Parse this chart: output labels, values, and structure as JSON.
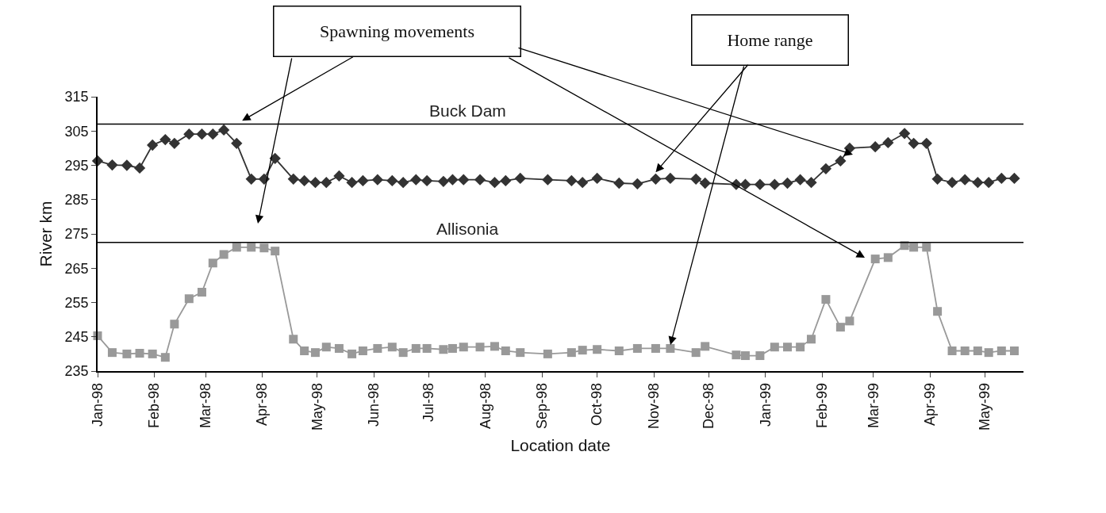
{
  "chart_data": {
    "type": "line",
    "xlabel": "Location date",
    "ylabel": "River km",
    "x": [
      "1998-01-01",
      "1998-01-09",
      "1998-01-17",
      "1998-01-24",
      "1998-01-31",
      "1998-02-07",
      "1998-02-12",
      "1998-02-20",
      "1998-02-27",
      "1998-03-05",
      "1998-03-11",
      "1998-03-18",
      "1998-03-26",
      "1998-04-02",
      "1998-04-08",
      "1998-04-18",
      "1998-04-24",
      "1998-04-30",
      "1998-05-06",
      "1998-05-13",
      "1998-05-20",
      "1998-05-26",
      "1998-06-03",
      "1998-06-11",
      "1998-06-17",
      "1998-06-24",
      "1998-06-30",
      "1998-07-09",
      "1998-07-14",
      "1998-07-20",
      "1998-07-29",
      "1998-08-06",
      "1998-08-12",
      "1998-08-20",
      "1998-09-04",
      "1998-09-17",
      "1998-09-23",
      "1998-10-01",
      "1998-10-13",
      "1998-10-23",
      "1998-11-02",
      "1998-11-10",
      "1998-11-24",
      "1998-11-29",
      "1998-12-16",
      "1998-12-21",
      "1998-12-29",
      "1999-01-06",
      "1999-01-13",
      "1999-01-20",
      "1999-01-26",
      "1999-02-03",
      "1999-02-11",
      "1999-02-16",
      "1999-03-02",
      "1999-03-09",
      "1999-03-18",
      "1999-03-23",
      "1999-03-30",
      "1999-04-05",
      "1999-04-13",
      "1999-04-20",
      "1999-04-27",
      "1999-05-03",
      "1999-05-10",
      "1999-05-17"
    ],
    "series": [
      {
        "color": "#333333",
        "marker": "diamond",
        "values": [
          296.3,
          295.1,
          295,
          294.2,
          300.9,
          302.5,
          301.4,
          304.1,
          304.1,
          304.1,
          305.3,
          301.4,
          291,
          291,
          297,
          291,
          290.5,
          290,
          290,
          291.9,
          290,
          290.5,
          290.8,
          290.5,
          290,
          290.8,
          290.5,
          290.3,
          290.8,
          290.8,
          290.8,
          290,
          290.5,
          291.2,
          290.8,
          290.5,
          290,
          291.2,
          289.8,
          289.6,
          291,
          291.2,
          291,
          289.8,
          289.4,
          289.4,
          289.4,
          289.4,
          289.8,
          290.8,
          290,
          294,
          296.3,
          300,
          300.4,
          301.6,
          304.3,
          301.4,
          301.4,
          291,
          290,
          290.8,
          290,
          290,
          291.2,
          291.2
        ]
      },
      {
        "color": "#999999",
        "marker": "square",
        "values": [
          245.3,
          240.4,
          240,
          240.2,
          240,
          239,
          248.7,
          256.1,
          258,
          266.5,
          269,
          271.1,
          271.1,
          270.9,
          270,
          244.3,
          240.9,
          240.4,
          242,
          241.6,
          240,
          240.9,
          241.6,
          242,
          240.4,
          241.6,
          241.6,
          241.3,
          241.6,
          242,
          242,
          242.2,
          240.9,
          240.4,
          240,
          240.4,
          241.1,
          241.3,
          240.9,
          241.6,
          241.6,
          241.6,
          240.4,
          242.2,
          239.7,
          239.5,
          239.5,
          242,
          242,
          242,
          244.3,
          255.9,
          247.8,
          249.6,
          267.7,
          268.1,
          271.6,
          271.1,
          271.1,
          252.4,
          240.9,
          240.9,
          240.9,
          240.4,
          240.9,
          240.9
        ]
      }
    ],
    "xlim": [
      "1998-01-01",
      "1999-05-22"
    ],
    "xticks": [
      {
        "value": "1998-01-01",
        "label": "Jan-98"
      },
      {
        "value": "1998-02-01",
        "label": "Feb-98"
      },
      {
        "value": "1998-03-01",
        "label": "Mar-98"
      },
      {
        "value": "1998-04-01",
        "label": "Apr-98"
      },
      {
        "value": "1998-05-01",
        "label": "May-98"
      },
      {
        "value": "1998-06-01",
        "label": "Jun-98"
      },
      {
        "value": "1998-07-01",
        "label": "Jul-98"
      },
      {
        "value": "1998-08-01",
        "label": "Aug-98"
      },
      {
        "value": "1998-09-01",
        "label": "Sep-98"
      },
      {
        "value": "1998-10-01",
        "label": "Oct-98"
      },
      {
        "value": "1998-11-01",
        "label": "Nov-98"
      },
      {
        "value": "1998-12-01",
        "label": "Dec-98"
      },
      {
        "value": "1999-01-01",
        "label": "Jan-99"
      },
      {
        "value": "1999-02-01",
        "label": "Feb-99"
      },
      {
        "value": "1999-03-01",
        "label": "Mar-99"
      },
      {
        "value": "1999-04-01",
        "label": "Apr-99"
      },
      {
        "value": "1999-05-01",
        "label": "May-99"
      }
    ],
    "ylim": [
      235,
      315
    ],
    "yticks": [
      235,
      245,
      255,
      265,
      275,
      285,
      295,
      305,
      315
    ],
    "ref_lines": [
      {
        "axis": "y",
        "value": 307,
        "label": "Buck Dam",
        "color": "#000000"
      },
      {
        "axis": "y",
        "value": 272.5,
        "label": "Allisonia",
        "color": "#000000"
      }
    ],
    "annotations": [
      {
        "text": "Spawning movements",
        "x": "1998-03-21",
        "y": 308
      },
      {
        "text": "Home range",
        "x": "1998-11-02",
        "y": 293
      }
    ]
  }
}
